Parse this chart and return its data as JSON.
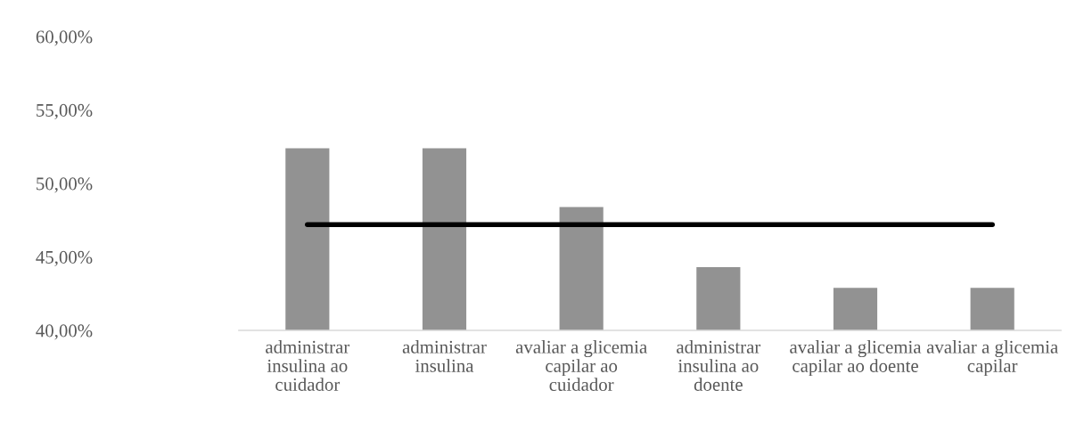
{
  "chart_data": {
    "type": "bar",
    "categories": [
      "administrar\ninsulina ao\ncuidador",
      "administrar\ninsulina",
      "avaliar a glicemia\ncapilar ao\ncuidador",
      "administrar\ninsulina ao\ndoente",
      "avaliar a glicemia\ncapilar ao doente",
      "avaliar a glicemia\ncapilar"
    ],
    "series": [
      {
        "color": "#929292",
        "values": [
          52.4,
          52.4,
          48.4,
          44.3,
          42.9,
          42.9
        ]
      },
      {
        "type": "line",
        "color": "#000000",
        "values": [
          47.2,
          47.2,
          47.2,
          47.2,
          47.2,
          47.2
        ]
      }
    ],
    "ylim": [
      40,
      60
    ],
    "yticks": [
      {
        "value": 40,
        "label": "40,00%"
      },
      {
        "value": 45,
        "label": "45,00%"
      },
      {
        "value": 50,
        "label": "50,00%"
      },
      {
        "value": 55,
        "label": "55,00%"
      },
      {
        "value": 60,
        "label": "60,00%"
      }
    ],
    "grid": false,
    "legend": false
  }
}
